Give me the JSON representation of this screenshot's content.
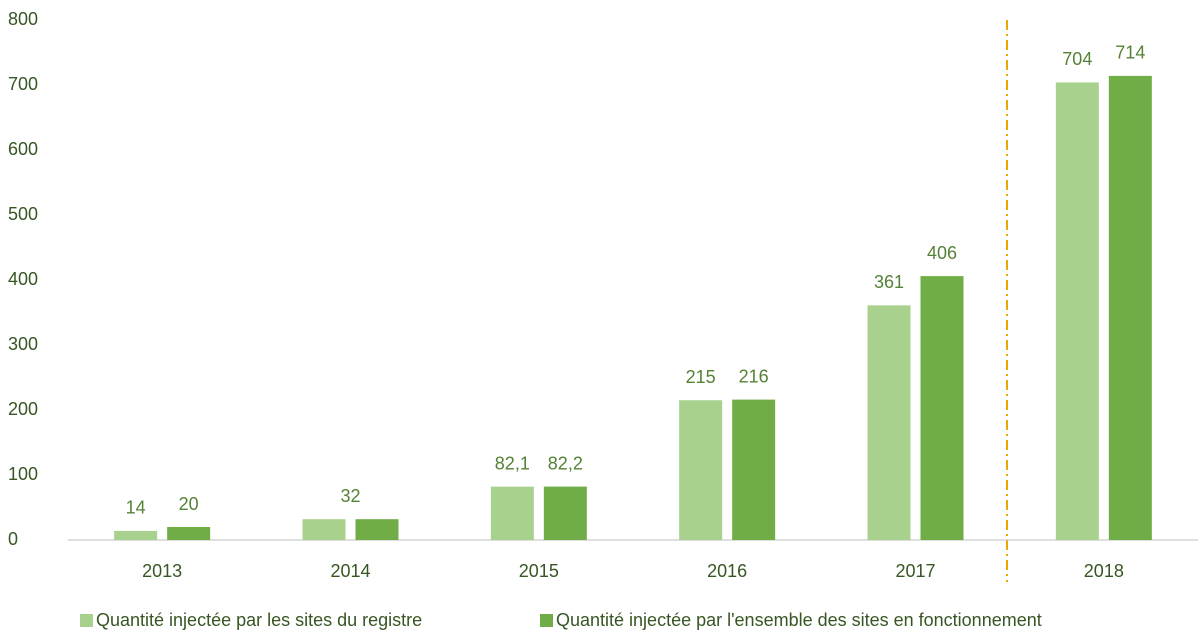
{
  "chart_data": {
    "type": "bar",
    "categories": [
      "2013",
      "2014",
      "2015",
      "2016",
      "2017",
      "2018"
    ],
    "series": [
      {
        "name": "Quantité injectée par les sites du registre",
        "color": "#a9d18e",
        "values": [
          14,
          32,
          82.1,
          215,
          361,
          704
        ],
        "value_labels": [
          "14",
          null,
          "82,1",
          "215",
          "361",
          "704"
        ]
      },
      {
        "name": "Quantité injectée par l'ensemble des sites en fonctionnement",
        "color": "#70ad47",
        "values": [
          20,
          32,
          82.2,
          216,
          406,
          714
        ],
        "value_labels": [
          "20",
          "32",
          "82,2",
          "216",
          "406",
          "714"
        ]
      }
    ],
    "ylim": [
      0,
      800
    ],
    "yticks": [
      0,
      100,
      200,
      300,
      400,
      500,
      600,
      700,
      800
    ],
    "grid": false,
    "legend": "bottom"
  }
}
